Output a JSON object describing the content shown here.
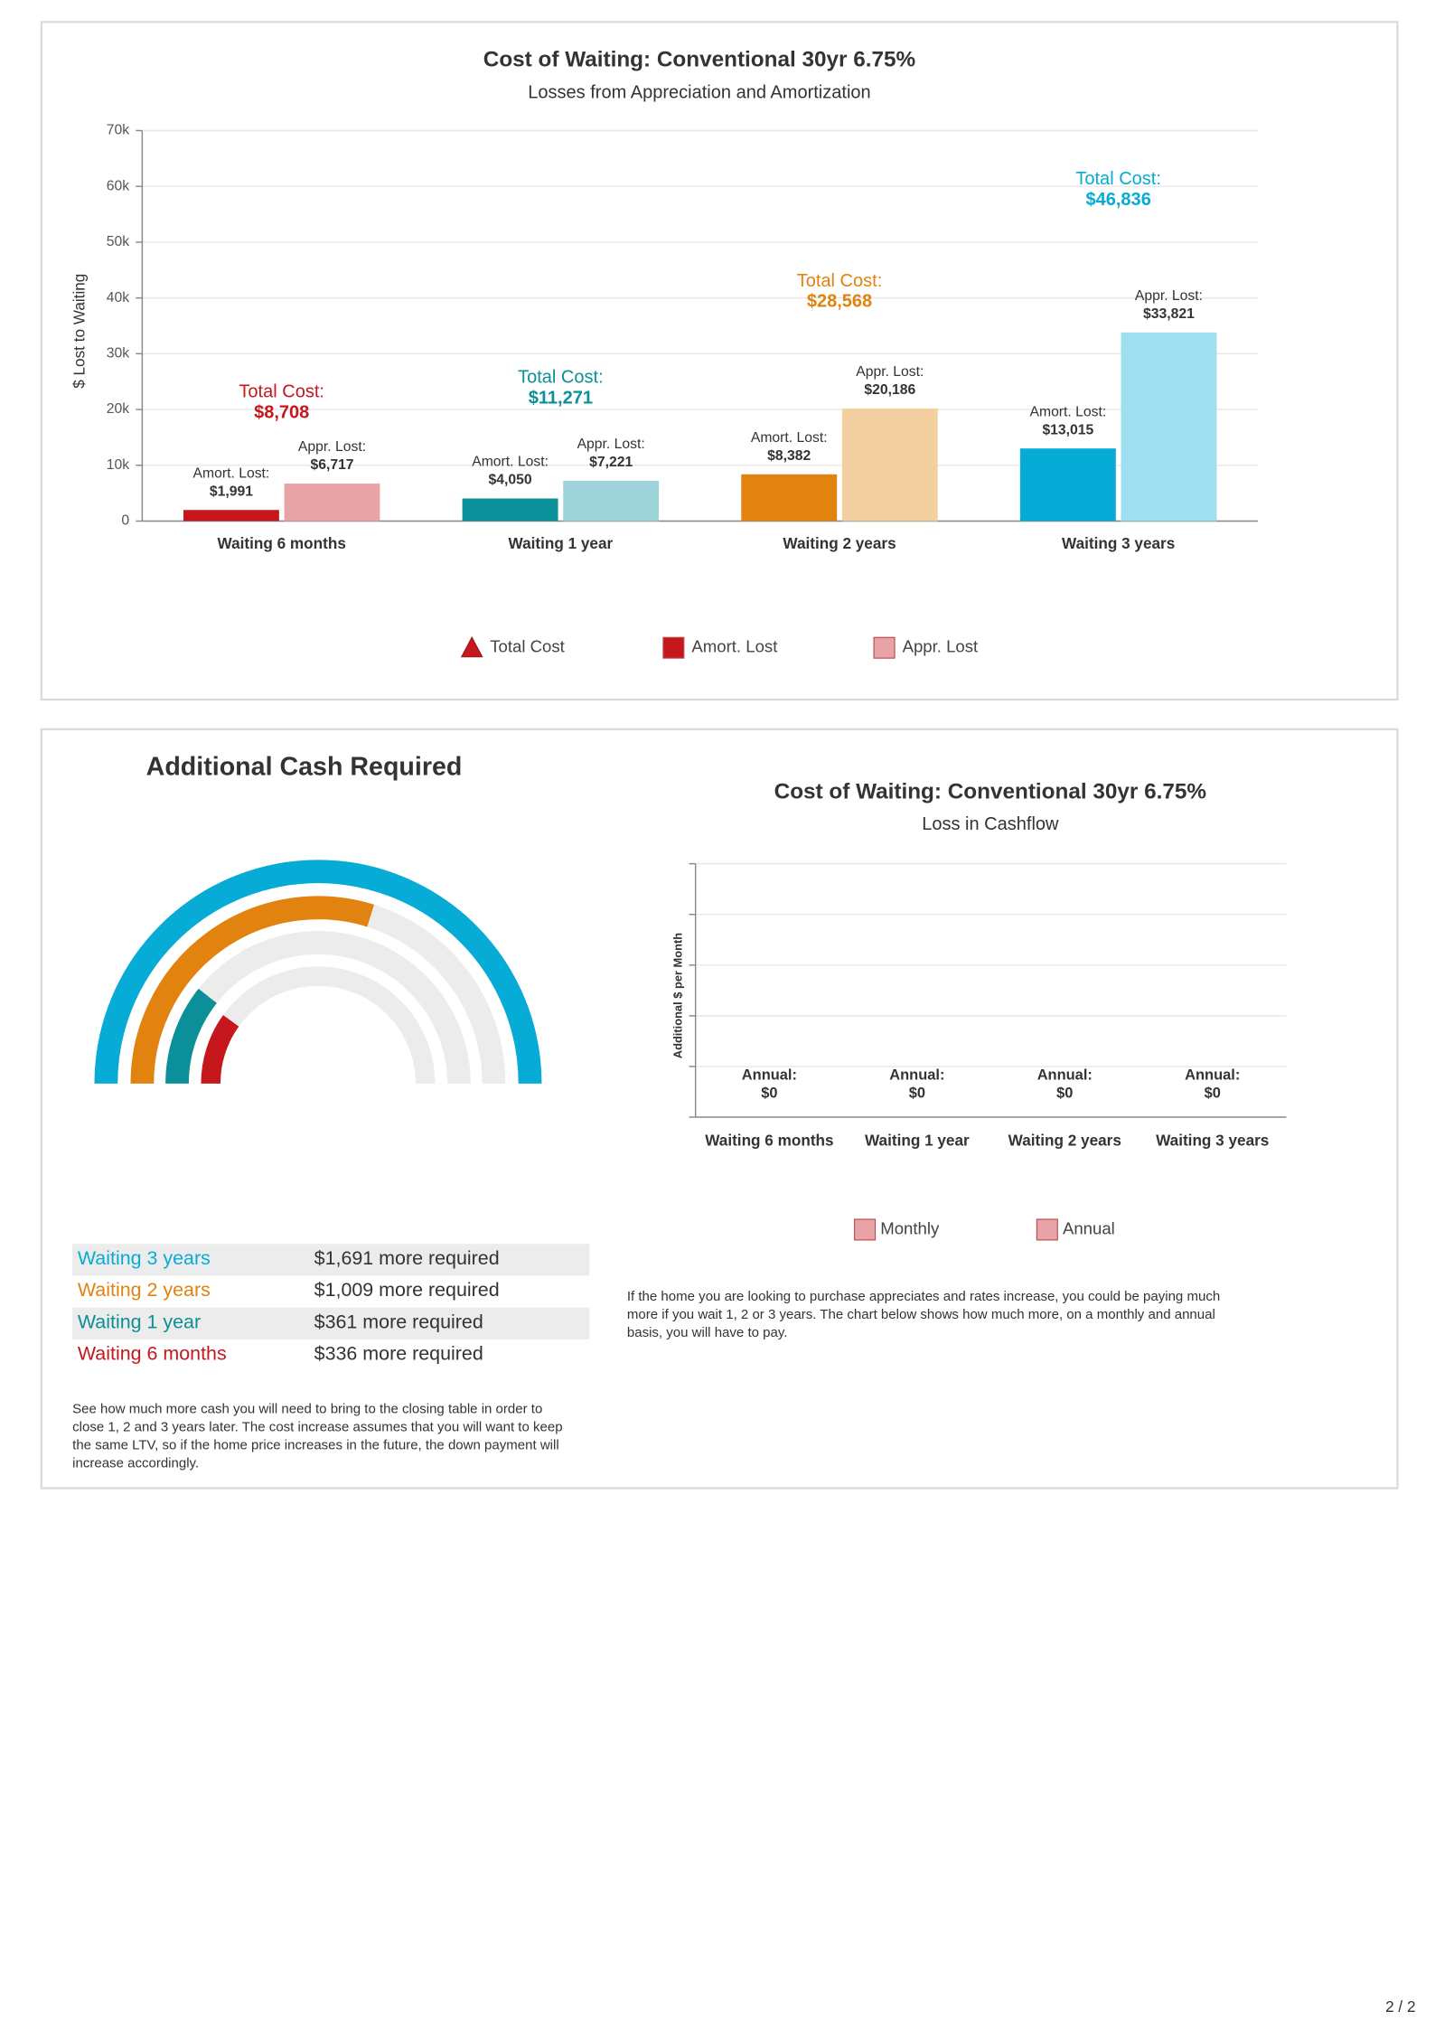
{
  "chart_data": [
    {
      "type": "grouped_bar",
      "title": "Cost of Waiting: Conventional 30yr 6.75%",
      "subtitle": "Losses from Appreciation and Amortization",
      "y_label": "$ Lost to Waiting",
      "categories": [
        "Waiting 6 months",
        "Waiting 1 year",
        "Waiting 2 years",
        "Waiting 3 years"
      ],
      "ylim": [
        0,
        70000
      ],
      "yticks": [
        0,
        {
          "value": 10000,
          "label": "10k"
        },
        {
          "value": 20000,
          "label": "20k"
        },
        {
          "value": 30000,
          "label": "30k"
        },
        {
          "value": 40000,
          "label": "40k"
        },
        {
          "value": 50000,
          "label": "50k"
        },
        {
          "value": 60000,
          "label": "60k"
        },
        {
          "value": 70000,
          "label": "70k"
        }
      ],
      "grid": true,
      "legend": "bottom",
      "series": [
        {
          "name": "Total Cost",
          "marker": "triangle",
          "data_label_title": "Total Cost:",
          "colors": [
            "#c6171c",
            "#0b8f98",
            "#e2820f",
            "#06acd5"
          ],
          "values": [
            8708,
            11271,
            28568,
            46836
          ],
          "value_labels": [
            "$8,708",
            "$11,271",
            "$28,568",
            "$46,836"
          ]
        },
        {
          "name": "Amort. Lost",
          "data_label_title": "Amort. Lost:",
          "colors": [
            "#c6171c",
            "#0b8f98",
            "#e2820f",
            "#06acd5"
          ],
          "values": [
            1991,
            4050,
            8382,
            13015
          ],
          "value_labels": [
            "$1,991",
            "$4,050",
            "$8,382",
            "$13,015"
          ]
        },
        {
          "name": "Appr. Lost",
          "data_label_title": "Appr. Lost:",
          "colors": [
            "#e8a3a6",
            "#9ed4d9",
            "#f4cfa0",
            "#a0dff0"
          ],
          "values": [
            6717,
            7221,
            20186,
            33821
          ],
          "value_labels": [
            "$6,717",
            "$7,221",
            "$20,186",
            "$33,821"
          ]
        }
      ]
    },
    {
      "type": "radial_bar",
      "title": "Additional Cash Required",
      "categories": [
        "Waiting 3 years",
        "Waiting 2 years",
        "Waiting 1 year",
        "Waiting 6 months"
      ],
      "values": [
        1691,
        1009,
        361,
        336
      ],
      "value_labels": [
        "$1,691 more required",
        "$1,009 more required",
        "$361 more required",
        "$336 more required"
      ],
      "colors": [
        "#06acd5",
        "#e2820f",
        "#0b8f98",
        "#c6171c"
      ],
      "description": "See how much more cash you will need to bring to the closing table in order to close 1, 2 and 3 years later. The cost increase assumes that you will want to keep the same LTV, so if the home price increases in the future, the down payment will increase accordingly."
    },
    {
      "type": "grouped_bar",
      "title": "Cost of Waiting: Conventional 30yr 6.75%",
      "subtitle": "Loss in Cashflow",
      "y_label": "Additional $ per Month",
      "categories": [
        "Waiting 6 months",
        "Waiting 1 year",
        "Waiting 2 years",
        "Waiting 3 years"
      ],
      "grid": true,
      "legend": "bottom",
      "series": [
        {
          "name": "Monthly",
          "color": "#e8a3a6",
          "values": [
            0,
            0,
            0,
            0
          ]
        },
        {
          "name": "Annual",
          "color": "#e8a3a6",
          "data_label_title": "Annual:",
          "values": [
            0,
            0,
            0,
            0
          ],
          "value_labels": [
            "$0",
            "$0",
            "$0",
            "$0"
          ]
        }
      ],
      "description": "If the home you are looking to purchase appreciates and rates increase, you could be paying much more if you wait 1, 2 or 3 years. The chart below shows how much more, on a monthly and annual basis, you will have to pay."
    }
  ],
  "page_number": "2 / 2"
}
